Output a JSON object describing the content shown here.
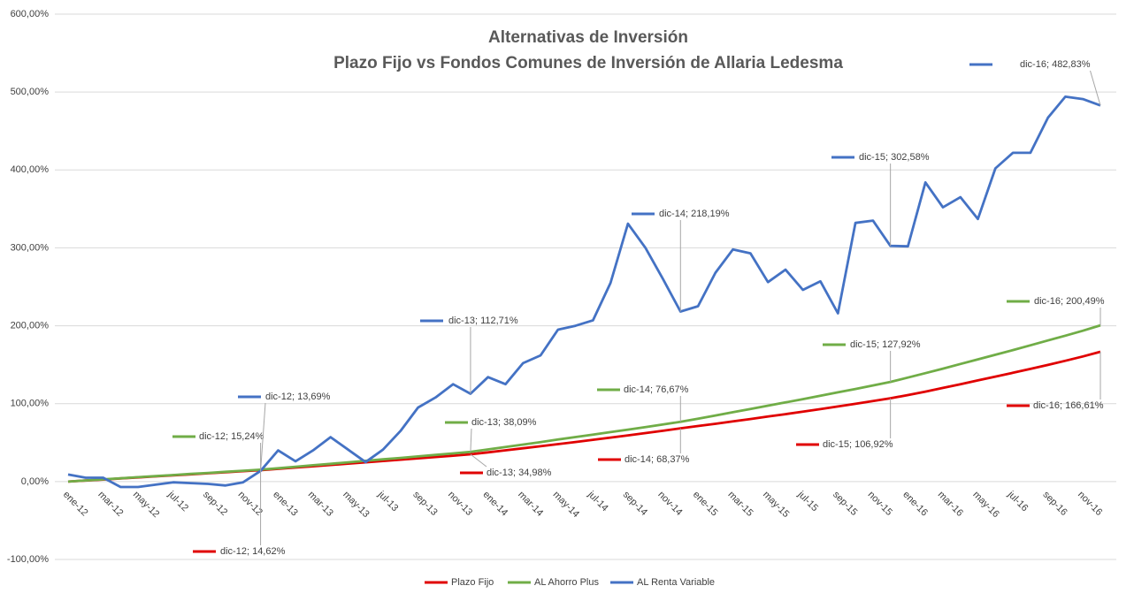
{
  "chart_data": {
    "type": "line",
    "title": "Alternativas de Inversión",
    "subtitle": "Plazo Fijo vs Fondos Comunes de Inversión de Allaria Ledesma",
    "categories": [
      "ene-12",
      null,
      "mar-12",
      null,
      "may-12",
      null,
      "jul-12",
      null,
      "sep-12",
      null,
      "nov-12",
      null,
      "ene-13",
      null,
      "mar-13",
      null,
      "may-13",
      null,
      "jul-13",
      null,
      "sep-13",
      null,
      "nov-13",
      null,
      "ene-14",
      null,
      "mar-14",
      null,
      "may-14",
      null,
      "jul-14",
      null,
      "sep-14",
      null,
      "nov-14",
      null,
      "ene-15",
      null,
      "mar-15",
      null,
      "may-15",
      null,
      "jul-15",
      null,
      "sep-15",
      null,
      "nov-15",
      null,
      "ene-16",
      null,
      "mar-16",
      null,
      "may-16",
      null,
      "jul-16",
      null,
      "sep-16",
      null,
      "nov-16",
      null
    ],
    "ylim": [
      -100,
      600
    ],
    "yticks": [
      {
        "value": -100,
        "label": "-100,00%"
      },
      {
        "value": 0,
        "label": "0,00%"
      },
      {
        "value": 100,
        "label": "100,00%"
      },
      {
        "value": 200,
        "label": "200,00%"
      },
      {
        "value": 300,
        "label": "300,00%"
      },
      {
        "value": 400,
        "label": "400,00%"
      },
      {
        "value": 500,
        "label": "500,00%"
      },
      {
        "value": 600,
        "label": "600,00%"
      }
    ],
    "grid": true,
    "legend": "bottom",
    "series": [
      {
        "name": "Plazo Fijo",
        "color": "#e00000",
        "values": [
          0,
          1.3,
          2.6,
          4,
          5.3,
          6.6,
          8,
          9.3,
          10.6,
          12,
          13.3,
          14.62,
          16.3,
          18,
          19.6,
          21.3,
          23,
          24.7,
          26.4,
          28.1,
          29.8,
          31.5,
          33.2,
          34.98,
          37.5,
          40.1,
          42.7,
          45.3,
          48,
          50.8,
          53.6,
          56.4,
          59.3,
          62.2,
          65.2,
          68.37,
          71.3,
          74.2,
          77.3,
          80.3,
          83.4,
          86.5,
          89.7,
          93,
          96.4,
          99.8,
          103.3,
          106.92,
          111,
          115.5,
          120.2,
          125,
          129.8,
          134.7,
          139.6,
          144.6,
          149.7,
          155,
          160.6,
          166.61
        ],
        "value_labels": [
          null,
          null,
          null,
          null,
          null,
          null,
          null,
          null,
          null,
          null,
          null,
          "dic-12; 14,62%",
          null,
          null,
          null,
          null,
          null,
          null,
          null,
          null,
          null,
          null,
          null,
          "dic-13; 34,98%",
          null,
          null,
          null,
          null,
          null,
          null,
          null,
          null,
          null,
          null,
          null,
          "dic-14; 68,37%",
          null,
          null,
          null,
          null,
          null,
          null,
          null,
          null,
          null,
          null,
          null,
          "dic-15; 106,92%",
          null,
          null,
          null,
          null,
          null,
          null,
          null,
          null,
          null,
          null,
          null,
          "dic-16; 166,61%"
        ]
      },
      {
        "name": "AL Ahorro Plus",
        "color": "#70ad47",
        "values": [
          0,
          1.4,
          2.8,
          4.2,
          5.6,
          7,
          8.4,
          9.8,
          11.1,
          12.5,
          13.9,
          15.24,
          17.1,
          19,
          20.9,
          22.8,
          24.7,
          26.6,
          28.5,
          30.4,
          32.3,
          34.2,
          36.1,
          38.09,
          41.2,
          44.3,
          47.5,
          50.7,
          53.9,
          57.1,
          60.3,
          63.5,
          66.7,
          70,
          73.3,
          76.67,
          80.7,
          84.8,
          89,
          93.2,
          97.4,
          101.6,
          105.8,
          110.1,
          114.5,
          118.9,
          123.4,
          127.92,
          133.5,
          139.2,
          145,
          150.9,
          156.8,
          162.8,
          168.8,
          174.9,
          181.1,
          187.3,
          193.6,
          200.49
        ],
        "value_labels": [
          null,
          null,
          null,
          null,
          null,
          null,
          null,
          null,
          null,
          null,
          null,
          "dic-12; 15,24%",
          null,
          null,
          null,
          null,
          null,
          null,
          null,
          null,
          null,
          null,
          null,
          "dic-13; 38,09%",
          null,
          null,
          null,
          null,
          null,
          null,
          null,
          null,
          null,
          null,
          null,
          "dic-14; 76,67%",
          null,
          null,
          null,
          null,
          null,
          null,
          null,
          null,
          null,
          null,
          null,
          "dic-15; 127,92%",
          null,
          null,
          null,
          null,
          null,
          null,
          null,
          null,
          null,
          null,
          null,
          "dic-16; 200,49%"
        ]
      },
      {
        "name": "AL Renta Variable",
        "color": "#4472c4",
        "values": [
          9,
          5,
          5,
          -7,
          -7,
          -4,
          -1,
          -2,
          -3,
          -5,
          -1,
          13.69,
          40,
          26,
          40,
          57,
          41,
          25,
          41,
          65,
          95,
          108,
          125,
          112.71,
          134,
          125,
          152,
          162,
          195,
          200,
          207,
          255,
          331,
          300,
          260,
          218.19,
          225,
          268,
          298,
          293,
          256,
          272,
          246,
          257,
          216,
          332,
          335,
          302.58,
          302,
          384,
          352,
          365,
          337,
          402,
          422,
          422,
          467,
          494,
          491,
          482.83
        ],
        "value_labels": [
          null,
          null,
          null,
          null,
          null,
          null,
          null,
          null,
          null,
          null,
          null,
          "dic-12; 13,69%",
          null,
          null,
          null,
          null,
          null,
          null,
          null,
          null,
          null,
          null,
          null,
          "dic-13; 112,71%",
          null,
          null,
          null,
          null,
          null,
          null,
          null,
          null,
          null,
          null,
          null,
          "dic-14; 218,19%",
          null,
          null,
          null,
          null,
          null,
          null,
          null,
          null,
          null,
          null,
          null,
          "dic-15; 302,58%",
          null,
          null,
          null,
          null,
          null,
          null,
          null,
          null,
          null,
          null,
          null,
          "dic-16; 482,83%"
        ]
      }
    ]
  }
}
